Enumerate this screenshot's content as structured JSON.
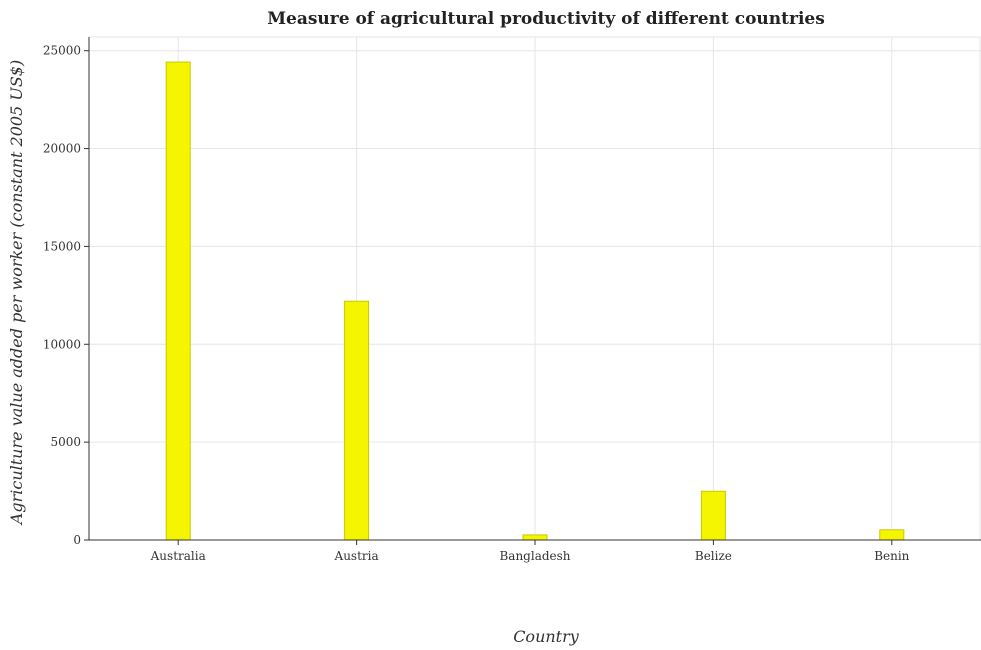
{
  "chart_data": {
    "type": "bar",
    "title": "Measure of agricultural productivity of different countries",
    "xlabel": "Country",
    "ylabel": "Agriculture value added per worker (constant 2005 US$)",
    "categories": [
      "Australia",
      "Austria",
      "Bangladesh",
      "Belize",
      "Benin"
    ],
    "values": [
      24420,
      12200,
      260,
      2490,
      520
    ],
    "ylim": [
      0,
      25700
    ],
    "yticks": [
      0,
      5000,
      10000,
      15000,
      20000,
      25000
    ],
    "ytick_labels": [
      "0",
      "5000",
      "10000",
      "15000",
      "20000",
      "25000"
    ],
    "grid": true,
    "bar_color": "#f5f500"
  }
}
